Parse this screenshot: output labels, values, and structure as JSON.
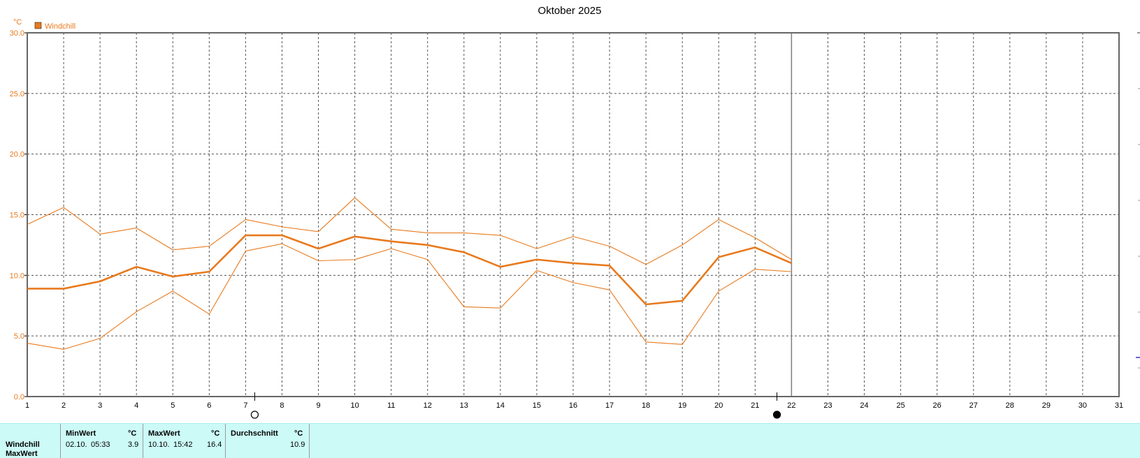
{
  "chart_data": {
    "type": "line",
    "title": "Oktober 2025",
    "unit_label": "°C",
    "legend": [
      {
        "name": "Windchill",
        "color": "#e87a1e"
      }
    ],
    "ylim": [
      0,
      30
    ],
    "yticks": [
      "0.0",
      "5.0",
      "10.0",
      "15.0",
      "20.0",
      "25.0",
      "30.0"
    ],
    "xlim": [
      1,
      31
    ],
    "xticks": [
      "1",
      "2",
      "3",
      "4",
      "5",
      "6",
      "7",
      "8",
      "9",
      "10",
      "11",
      "12",
      "13",
      "14",
      "15",
      "16",
      "17",
      "18",
      "19",
      "20",
      "21",
      "22",
      "23",
      "24",
      "25",
      "26",
      "27",
      "28",
      "29",
      "30",
      "31"
    ],
    "grid": true,
    "current_day": 22,
    "moon_phases": [
      {
        "day": 7.25,
        "phase": "full-moon-icon"
      },
      {
        "day": 21.6,
        "phase": "new-moon-icon"
      }
    ],
    "x": [
      1,
      2,
      3,
      4,
      5,
      6,
      7,
      8,
      9,
      10,
      11,
      12,
      13,
      14,
      15,
      16,
      17,
      18,
      19,
      20,
      21,
      22
    ],
    "series": [
      {
        "name": "Windchill Max",
        "values": [
          14.2,
          15.6,
          13.4,
          13.9,
          12.1,
          12.4,
          14.6,
          14.0,
          13.6,
          16.4,
          13.8,
          13.5,
          13.5,
          13.3,
          12.2,
          13.2,
          12.4,
          10.9,
          12.5,
          14.6,
          13.1,
          11.3
        ]
      },
      {
        "name": "Windchill Durchschnitt",
        "values": [
          8.9,
          8.9,
          9.5,
          10.7,
          9.9,
          10.3,
          13.3,
          13.3,
          12.2,
          13.2,
          12.8,
          12.5,
          11.9,
          10.7,
          11.3,
          11.0,
          10.8,
          7.6,
          7.9,
          11.5,
          12.3,
          11.0
        ]
      },
      {
        "name": "Windchill Min",
        "values": [
          4.4,
          3.9,
          4.8,
          7.0,
          8.7,
          6.8,
          12.0,
          12.6,
          11.2,
          11.3,
          12.2,
          11.3,
          7.4,
          7.3,
          10.4,
          9.4,
          8.8,
          4.5,
          4.3,
          8.7,
          10.5,
          10.3
        ]
      }
    ],
    "colors": {
      "line": "#e87a1e",
      "grid": "#555555",
      "panel": "#ccfaf7"
    }
  },
  "stats": {
    "row_label": "Windchill",
    "row_label_2": "MaxWert",
    "min": {
      "header": "MinWert",
      "unit": "°C",
      "date": "02.10.",
      "time": "05:33",
      "value": "3.9"
    },
    "max": {
      "header": "MaxWert",
      "unit": "°C",
      "date": "10.10.",
      "time": "15:42",
      "value": "16.4"
    },
    "avg": {
      "header": "Durchschnitt",
      "unit": "°C",
      "value": "10.9"
    }
  }
}
